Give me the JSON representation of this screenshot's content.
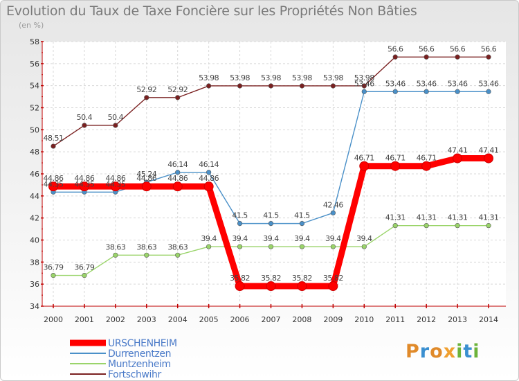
{
  "title": "Evolution du Taux de Taxe Foncière sur les Propriétés Non Bâties",
  "unit": "(en %)",
  "logo": {
    "text": "Proxiti"
  },
  "chart_data": {
    "type": "line",
    "title": "Evolution du Taux de Taxe Foncière sur les Propriétés Non Bâties",
    "ylabel": "(en %)",
    "xlabel": "",
    "x": [
      "2000",
      "2001",
      "2002",
      "2003",
      "2004",
      "2005",
      "2006",
      "2007",
      "2008",
      "2009",
      "2010",
      "2011",
      "2012",
      "2013",
      "2014"
    ],
    "ylim": [
      34,
      58
    ],
    "yticks": [
      34,
      36,
      38,
      40,
      42,
      44,
      46,
      48,
      50,
      52,
      54,
      56,
      58
    ],
    "grid": true,
    "legend_position": "bottom-left",
    "series": [
      {
        "name": "URSCHENHEIM",
        "color": "#ff0000",
        "highlight": true,
        "values": [
          44.86,
          44.86,
          44.86,
          44.86,
          44.86,
          44.86,
          35.82,
          35.82,
          35.82,
          35.82,
          46.71,
          46.71,
          46.71,
          47.41,
          47.41
        ],
        "labels": [
          "44.86",
          "44.86",
          "44.86",
          "44.86",
          "44.86",
          "44.86",
          "35.82",
          "35.82",
          "35.82",
          "35.82",
          "46.71",
          "46.71",
          "46.71",
          "47.41",
          "47.41"
        ]
      },
      {
        "name": "Durrenentzen",
        "color": "#4a90c8",
        "highlight": false,
        "values": [
          44.35,
          44.35,
          44.35,
          45.24,
          46.14,
          46.14,
          41.5,
          41.5,
          41.5,
          42.46,
          53.46,
          53.46,
          53.46,
          53.46,
          53.46
        ],
        "labels": [
          "44.35",
          "44.35",
          "44.35",
          "45.24",
          "46.14",
          "46.14",
          "41.5",
          "41.5",
          "41.5",
          "42.46",
          "53.46",
          "53.46",
          "53.46",
          "53.46",
          "53.46"
        ]
      },
      {
        "name": "Muntzenheim",
        "color": "#9ad46a",
        "highlight": false,
        "values": [
          36.79,
          36.79,
          38.63,
          38.63,
          38.63,
          39.4,
          39.4,
          39.4,
          39.4,
          39.4,
          39.4,
          41.31,
          41.31,
          41.31,
          41.31
        ],
        "labels": [
          "36.79",
          "36.79",
          "38.63",
          "38.63",
          "38.63",
          "39.4",
          "39.4",
          "39.4",
          "39.4",
          "39.4",
          "39.4",
          "41.31",
          "41.31",
          "41.31",
          "41.31"
        ]
      },
      {
        "name": "Fortschwihr",
        "color": "#7a2020",
        "highlight": false,
        "values": [
          48.51,
          50.4,
          50.4,
          52.92,
          52.92,
          53.98,
          53.98,
          53.98,
          53.98,
          53.98,
          53.98,
          56.6,
          56.6,
          56.6,
          56.6
        ],
        "labels": [
          "48.51",
          "50.4",
          "50.4",
          "52.92",
          "52.92",
          "53.98",
          "53.98",
          "53.98",
          "53.98",
          "53.98",
          "53.98",
          "56.6",
          "56.6",
          "56.6",
          "56.6"
        ]
      }
    ]
  }
}
